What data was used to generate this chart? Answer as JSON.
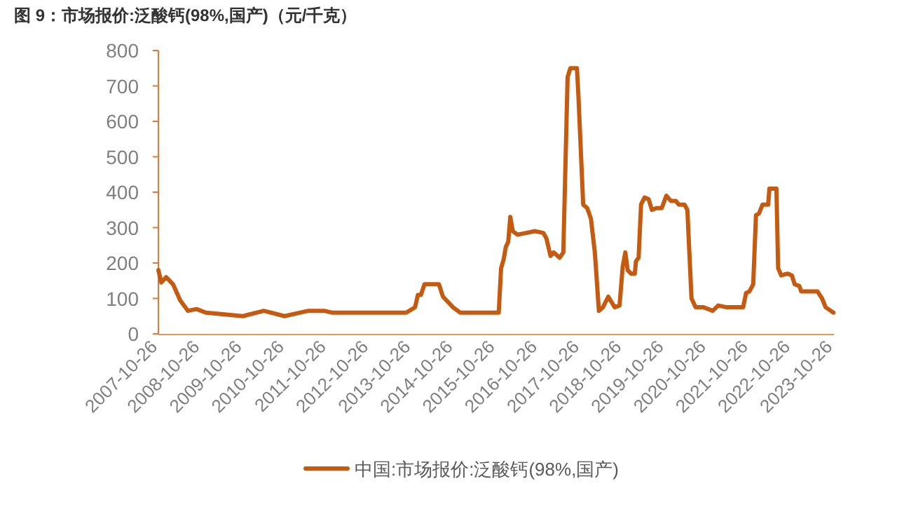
{
  "chart_data": {
    "type": "line",
    "title": "图 9：市场报价:泛酸钙(98%,国产)（元/千克）",
    "xlim": [
      "2007-10-26",
      "2023-10-31"
    ],
    "xticks": [
      "2007-10-26",
      "2008-10-26",
      "2009-10-26",
      "2010-10-26",
      "2011-10-26",
      "2012-10-26",
      "2013-10-26",
      "2014-10-26",
      "2015-10-26",
      "2016-10-26",
      "2017-10-26",
      "2018-10-26",
      "2019-10-26",
      "2020-10-26",
      "2021-10-26",
      "2022-10-26",
      "2023-10-26"
    ],
    "ylim": [
      0,
      800
    ],
    "yticks": [
      0,
      100,
      200,
      300,
      400,
      500,
      600,
      700,
      800
    ],
    "grid": false,
    "legend": "bottom",
    "marker": "none",
    "line_style": "solid",
    "series": [
      {
        "name": "中国:市场报价:泛酸钙(98%,国产)",
        "color": "#c55a11",
        "x": [
          "2007-10-26",
          "2007-11-20",
          "2008-01-01",
          "2008-03-01",
          "2008-05-01",
          "2008-07-08",
          "2008-09-20",
          "2008-12-10",
          "2009-10-26",
          "2010-04-26",
          "2010-10-22",
          "2011-05-15",
          "2011-10-01",
          "2011-12-05",
          "2013-09-10",
          "2013-11-25",
          "2013-12-20",
          "2014-01-15",
          "2014-02-15",
          "2014-06-20",
          "2014-07-25",
          "2014-10-20",
          "2014-12-20",
          "2015-11-20",
          "2015-12-10",
          "2016-01-01",
          "2016-01-20",
          "2016-02-10",
          "2016-02-28",
          "2016-03-20",
          "2016-05-01",
          "2016-10-01",
          "2016-12-10",
          "2017-01-05",
          "2017-02-10",
          "2017-03-10",
          "2017-04-30",
          "2017-06-01",
          "2017-07-08",
          "2017-08-01",
          "2017-09-27",
          "2017-10-10",
          "2017-11-20",
          "2017-12-25",
          "2018-01-26",
          "2018-03-01",
          "2018-04-05",
          "2018-05-10",
          "2018-06-25",
          "2018-08-20",
          "2018-10-01",
          "2018-10-28",
          "2018-11-20",
          "2018-12-10",
          "2019-01-08",
          "2019-02-10",
          "2019-02-20",
          "2019-03-15",
          "2019-04-05",
          "2019-05-05",
          "2019-06-10",
          "2019-07-08",
          "2019-08-15",
          "2019-10-01",
          "2019-11-10",
          "2019-12-20",
          "2020-02-01",
          "2020-02-25",
          "2020-04-15",
          "2020-05-10",
          "2020-06-15",
          "2020-07-20",
          "2020-09-27",
          "2020-12-15",
          "2021-02-01",
          "2021-04-15",
          "2021-09-05",
          "2021-09-30",
          "2021-10-30",
          "2021-12-01",
          "2021-12-25",
          "2022-01-20",
          "2022-02-20",
          "2022-04-10",
          "2022-04-20",
          "2022-06-20",
          "2022-07-05",
          "2022-08-01",
          "2022-09-25",
          "2022-11-01",
          "2022-11-25",
          "2023-01-05",
          "2023-01-20",
          "2023-06-10",
          "2023-07-20",
          "2023-08-20",
          "2023-10-27"
        ],
        "values": [
          180,
          145,
          160,
          140,
          95,
          65,
          70,
          60,
          50,
          65,
          50,
          65,
          65,
          60,
          60,
          75,
          110,
          110,
          140,
          140,
          105,
          75,
          60,
          60,
          185,
          210,
          245,
          260,
          330,
          290,
          280,
          290,
          285,
          270,
          220,
          230,
          215,
          230,
          725,
          750,
          750,
          670,
          365,
          355,
          325,
          230,
          65,
          75,
          105,
          75,
          80,
          190,
          230,
          180,
          170,
          170,
          205,
          215,
          365,
          385,
          380,
          350,
          355,
          355,
          390,
          375,
          375,
          365,
          365,
          350,
          100,
          75,
          75,
          65,
          80,
          75,
          75,
          115,
          120,
          140,
          335,
          340,
          365,
          365,
          410,
          410,
          185,
          165,
          170,
          165,
          140,
          135,
          120,
          120,
          100,
          75,
          60
        ]
      }
    ]
  }
}
